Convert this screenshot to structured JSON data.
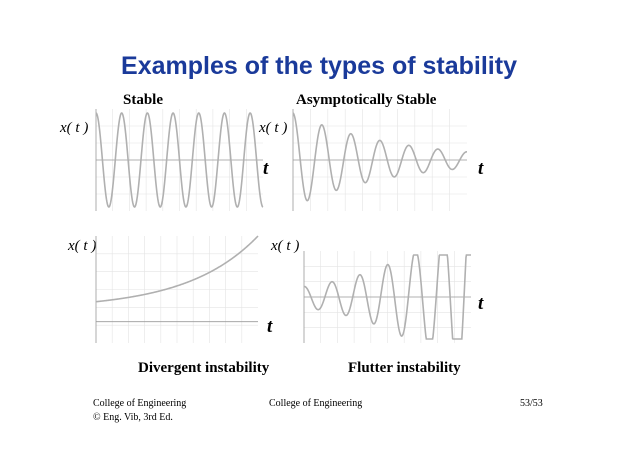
{
  "slide": {
    "title": "Examples of the types of stability",
    "panels": [
      {
        "caption": "Stable",
        "ylabel": "x( t )",
        "xlabel": "t"
      },
      {
        "caption": "Asymptotically Stable",
        "ylabel": "x( t )",
        "xlabel": "t"
      },
      {
        "caption": "Divergent instability",
        "ylabel": "x( t )",
        "xlabel": "t"
      },
      {
        "caption": "Flutter instability",
        "ylabel": "x( t )",
        "xlabel": "t"
      }
    ]
  },
  "footer": {
    "left_line1": "College of Engineering",
    "left_line2": "© Eng. Vib, 3rd Ed.",
    "center": "College of Engineering",
    "page": "53/53"
  },
  "colors": {
    "title": "#1a3a9a",
    "curve": "#b0b0b0",
    "grid": "#e4e4e4"
  },
  "chart_data": [
    {
      "type": "line",
      "behavior": "stable",
      "series": [
        {
          "kind": "sinusoid",
          "amplitude": 1.0,
          "decay": 0.0,
          "cycles": 6.5
        }
      ]
    },
    {
      "type": "line",
      "behavior": "asymptotically-stable",
      "series": [
        {
          "kind": "damped-sinusoid",
          "amplitude": 1.0,
          "decay": 0.35,
          "cycles": 6.0
        }
      ]
    },
    {
      "type": "line",
      "behavior": "divergent",
      "series": [
        {
          "kind": "exponential-growth",
          "start": 0.1,
          "end": 1.0
        }
      ]
    },
    {
      "type": "line",
      "behavior": "flutter",
      "series": [
        {
          "kind": "growing-sinusoid",
          "amplitude": 0.25,
          "growth": 0.45,
          "cycles": 6.0
        }
      ]
    }
  ]
}
